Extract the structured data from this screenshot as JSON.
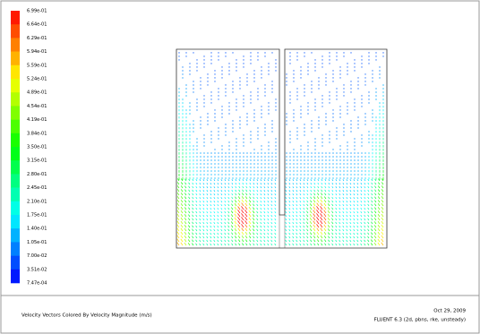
{
  "colorbar": {
    "labels": [
      "6.99e-01",
      "6.64e-01",
      "6.29e-01",
      "5.94e-01",
      "5.59e-01",
      "5.24e-01",
      "4.89e-01",
      "4.54e-01",
      "4.19e-01",
      "3.84e-01",
      "3.50e-01",
      "3.15e-01",
      "2.80e-01",
      "2.45e-01",
      "2.10e-01",
      "1.75e-01",
      "1.40e-01",
      "1.05e-01",
      "7.00e-02",
      "3.51e-02",
      "7.47e-04"
    ]
  },
  "footer": {
    "caption": "Velocity Vectors Colored By Velocity Magnitude (m/s)",
    "date": "Oct 29, 2009",
    "solver": "FLUENT 6.3 (2d, pbns, rke, unsteady)"
  }
}
